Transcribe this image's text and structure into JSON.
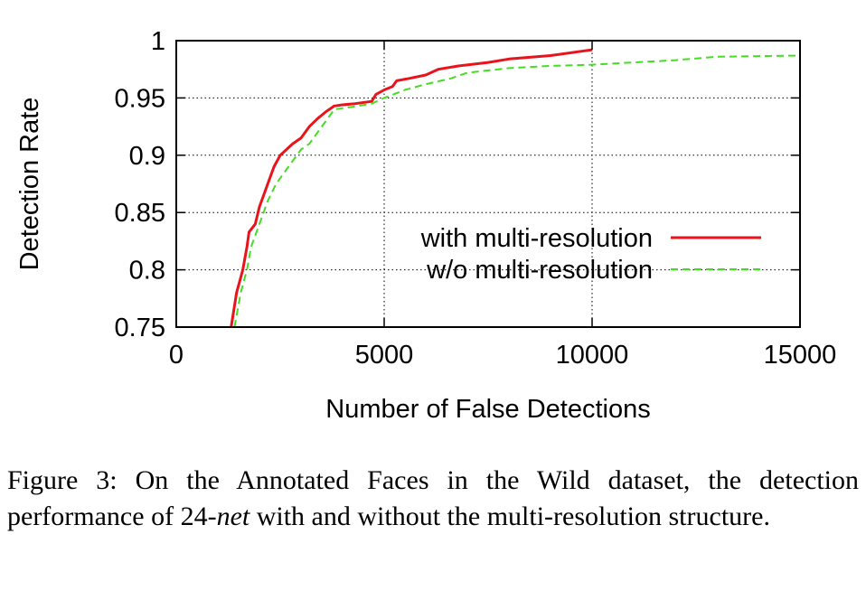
{
  "chart_data": {
    "type": "line",
    "xlabel": "Number of False Detections",
    "ylabel": "Detection Rate",
    "xlim": [
      0,
      15000
    ],
    "ylim": [
      0.75,
      1.0
    ],
    "x_ticks": [
      {
        "value": 0,
        "label": "0"
      },
      {
        "value": 5000,
        "label": "5000"
      },
      {
        "value": 10000,
        "label": "10000"
      },
      {
        "value": 15000,
        "label": "15000"
      }
    ],
    "y_ticks": [
      {
        "value": 0.75,
        "label": "0.75"
      },
      {
        "value": 0.8,
        "label": "0.8"
      },
      {
        "value": 0.85,
        "label": "0.85"
      },
      {
        "value": 0.9,
        "label": "0.9"
      },
      {
        "value": 0.95,
        "label": "0.95"
      },
      {
        "value": 1.0,
        "label": "1"
      }
    ],
    "grid": true,
    "legend_position": "lower-right",
    "series": [
      {
        "name": "with multi-resolution",
        "color": "#e8141c",
        "style": "solid",
        "points": [
          [
            1320,
            0.75
          ],
          [
            1450,
            0.78
          ],
          [
            1600,
            0.8
          ],
          [
            1700,
            0.82
          ],
          [
            1750,
            0.833
          ],
          [
            1900,
            0.84
          ],
          [
            2000,
            0.855
          ],
          [
            2100,
            0.865
          ],
          [
            2200,
            0.875
          ],
          [
            2350,
            0.89
          ],
          [
            2500,
            0.9
          ],
          [
            2650,
            0.905
          ],
          [
            2800,
            0.91
          ],
          [
            3000,
            0.915
          ],
          [
            3200,
            0.925
          ],
          [
            3400,
            0.932
          ],
          [
            3600,
            0.938
          ],
          [
            3800,
            0.943
          ],
          [
            4000,
            0.944
          ],
          [
            4300,
            0.945
          ],
          [
            4700,
            0.947
          ],
          [
            4800,
            0.953
          ],
          [
            5000,
            0.957
          ],
          [
            5200,
            0.96
          ],
          [
            5300,
            0.965
          ],
          [
            5600,
            0.967
          ],
          [
            6000,
            0.97
          ],
          [
            6300,
            0.975
          ],
          [
            6800,
            0.978
          ],
          [
            7500,
            0.981
          ],
          [
            8000,
            0.984
          ],
          [
            9000,
            0.987
          ],
          [
            10000,
            0.992
          ]
        ]
      },
      {
        "name": "w/o multi-resolution",
        "color": "#44dd22",
        "style": "dashed",
        "points": [
          [
            1400,
            0.75
          ],
          [
            1550,
            0.78
          ],
          [
            1700,
            0.8
          ],
          [
            1800,
            0.82
          ],
          [
            2000,
            0.84
          ],
          [
            2200,
            0.86
          ],
          [
            2400,
            0.875
          ],
          [
            2600,
            0.885
          ],
          [
            2800,
            0.895
          ],
          [
            3000,
            0.905
          ],
          [
            3200,
            0.91
          ],
          [
            3400,
            0.92
          ],
          [
            3600,
            0.93
          ],
          [
            3800,
            0.94
          ],
          [
            4200,
            0.942
          ],
          [
            4700,
            0.945
          ],
          [
            5000,
            0.95
          ],
          [
            5500,
            0.957
          ],
          [
            6000,
            0.962
          ],
          [
            6600,
            0.967
          ],
          [
            7000,
            0.972
          ],
          [
            8000,
            0.976
          ],
          [
            9000,
            0.978
          ],
          [
            10000,
            0.979
          ],
          [
            11000,
            0.981
          ],
          [
            12000,
            0.983
          ],
          [
            13000,
            0.986
          ],
          [
            15000,
            0.987
          ]
        ]
      }
    ]
  },
  "caption": {
    "prefix": "Figure 3: On the Annotated Faces in the Wild dataset, the detection performance of ",
    "number": "24-",
    "italic": "net",
    "suffix": " with and without the multi-resolution structure."
  }
}
